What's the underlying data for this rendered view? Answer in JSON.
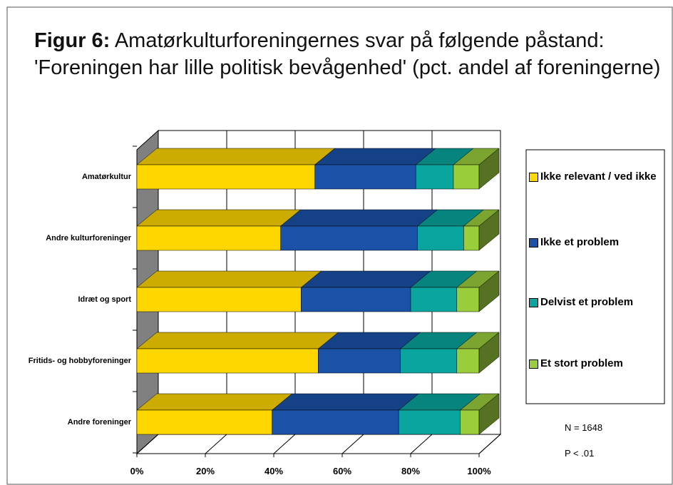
{
  "chart_data": {
    "type": "bar",
    "orientation": "horizontal",
    "stacked": true,
    "three_d": true,
    "title_label": "Figur 6:",
    "title": "Amatørkulturforeningernes svar på følgende påstand: 'Foreningen har lille politisk bevågenhed' (pct. andel af foreningerne)",
    "categories": [
      "Amatørkultur",
      "Andre kulturforeninger",
      "Idræt og sport",
      "Fritids- og hobbyforeninger",
      "Andre foreninger"
    ],
    "series": [
      {
        "name": "Ikke relevant / ved ikke",
        "color": "#ffd700",
        "values": [
          52,
          42,
          48,
          53,
          39.5
        ]
      },
      {
        "name": "Ikke et problem",
        "color": "#1a52a8",
        "values": [
          29.5,
          40,
          32,
          24,
          37
        ]
      },
      {
        "name": "Delvist et problem",
        "color": "#0aa59e",
        "values": [
          11,
          13.5,
          13.5,
          16.5,
          18
        ]
      },
      {
        "name": "Et stort problem",
        "color": "#9acd3c",
        "values": [
          7.5,
          4.5,
          6.5,
          6.5,
          5.5
        ]
      }
    ],
    "xlim": [
      0,
      100
    ],
    "xticks": [
      {
        "value": 0,
        "label": "0%"
      },
      {
        "value": 20,
        "label": "20%"
      },
      {
        "value": 40,
        "label": "40%"
      },
      {
        "value": 60,
        "label": "60%"
      },
      {
        "value": 80,
        "label": "80%"
      },
      {
        "value": 100,
        "label": "100%"
      }
    ],
    "grid": true,
    "legend": "right",
    "annotations": [
      "N = 1648",
      "P < .01"
    ]
  }
}
